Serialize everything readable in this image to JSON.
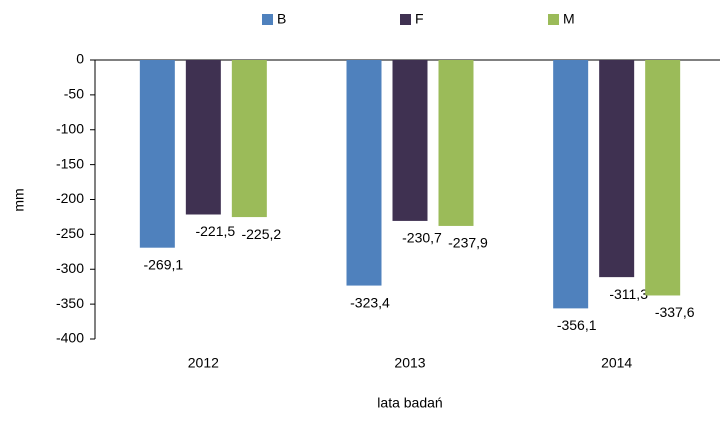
{
  "chart_data": {
    "type": "bar",
    "categories": [
      "2012",
      "2013",
      "2014"
    ],
    "series": [
      {
        "name": "B",
        "color": "#4f81bd",
        "values": [
          -269.1,
          -323.4,
          -356.1
        ],
        "value_labels": [
          "-269,1",
          "-323,4",
          "-356,1"
        ]
      },
      {
        "name": "F",
        "color": "#3f3151",
        "values": [
          -221.5,
          -230.7,
          -311.3
        ],
        "value_labels": [
          "-221,5",
          "-230,7",
          "-311,3"
        ]
      },
      {
        "name": "M",
        "color": "#9bbb59",
        "values": [
          -225.2,
          -237.9,
          -337.6
        ],
        "value_labels": [
          "-225,2",
          "-237,9",
          "-337,6"
        ]
      }
    ],
    "ylabel": "mm",
    "xlabel": "lata badań",
    "ylim": [
      -400,
      0
    ],
    "yticks": [
      0,
      -50,
      -100,
      -150,
      -200,
      -250,
      -300,
      -350,
      -400
    ],
    "legend": "top"
  }
}
